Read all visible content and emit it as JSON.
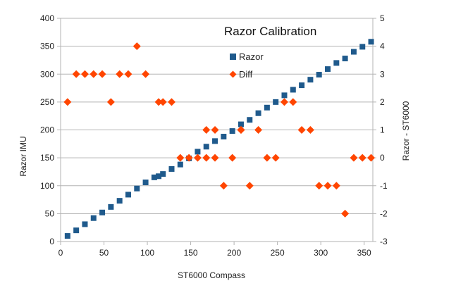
{
  "chart_data": {
    "type": "scatter",
    "title": "Razor Calibration",
    "xlabel": "ST6000 Compass",
    "ylabel": "Razor IMU",
    "y2label": "Razor - ST6000",
    "xlim": [
      0,
      360
    ],
    "ylim": [
      0,
      400
    ],
    "y2lim": [
      -3,
      5
    ],
    "xticks": [
      0,
      50,
      100,
      150,
      200,
      250,
      300,
      350
    ],
    "yticks": [
      0,
      50,
      100,
      150,
      200,
      250,
      300,
      350,
      400
    ],
    "y2ticks": [
      -3,
      -2,
      -1,
      0,
      1,
      2,
      3,
      4,
      5
    ],
    "grid": "horizontal",
    "legend": "top-center",
    "series": [
      {
        "name": "Razor",
        "axis": "left",
        "marker": "square",
        "color": "#1f5a8c",
        "x": [
          8,
          18,
          28,
          38,
          48,
          58,
          68,
          78,
          88,
          98,
          108,
          113,
          118,
          128,
          138,
          148,
          158,
          168,
          178,
          188,
          198,
          208,
          218,
          228,
          238,
          248,
          258,
          268,
          278,
          288,
          298,
          308,
          318,
          328,
          338,
          348,
          358
        ],
        "y": [
          10,
          20,
          31,
          42,
          52,
          62,
          73,
          84,
          95,
          106,
          115,
          117,
          121,
          130,
          138,
          149,
          161,
          170,
          180,
          188,
          198,
          210,
          218,
          230,
          240,
          250,
          262,
          272,
          280,
          290,
          299,
          309,
          320,
          328,
          340,
          349,
          358
        ]
      },
      {
        "name": "Diff",
        "axis": "right",
        "marker": "diamond",
        "color": "#ff4500",
        "x": [
          8,
          18,
          28,
          38,
          48,
          58,
          68,
          78,
          88,
          98,
          113,
          118,
          128,
          138,
          148,
          158,
          168,
          178,
          188,
          198,
          208,
          218,
          228,
          238,
          248,
          258,
          268,
          278,
          288,
          298,
          308,
          318,
          328,
          338,
          348,
          358
        ],
        "y": [
          2,
          3,
          3,
          3,
          3,
          2,
          3,
          3,
          4,
          3,
          2,
          2,
          2,
          0,
          0,
          0,
          0,
          0,
          -1,
          0,
          1,
          -1,
          1,
          0,
          0,
          2,
          2,
          1,
          1,
          -1,
          -1,
          -1,
          -2,
          0,
          0,
          0
        ],
        "extra": [
          {
            "x": 168,
            "y": 1
          },
          {
            "x": 178,
            "y": 1
          },
          {
            "x": 208,
            "y": 1
          }
        ]
      }
    ]
  }
}
